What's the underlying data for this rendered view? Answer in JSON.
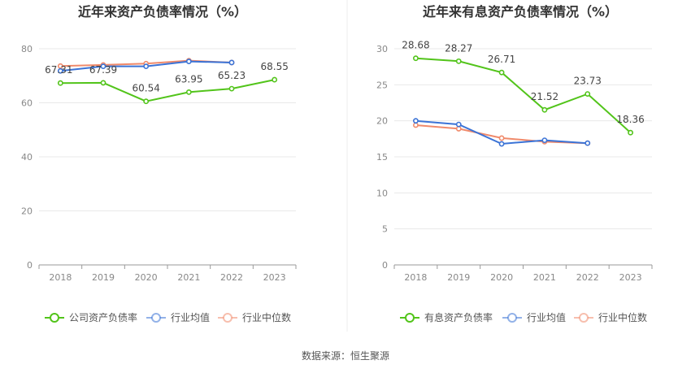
{
  "source": "数据来源：恒生聚源",
  "chart_data": [
    {
      "type": "line",
      "title": "近年来资产负债率情况（%）",
      "categories": [
        "2018",
        "2019",
        "2020",
        "2021",
        "2022",
        "2023"
      ],
      "ylim": [
        0,
        80
      ],
      "yticks": [
        0,
        20,
        40,
        60,
        80
      ],
      "grid": true,
      "legend_position": "bottom",
      "series": [
        {
          "name": "公司资产负债率",
          "color": "#52c41a",
          "values": [
            67.31,
            67.39,
            60.54,
            63.95,
            65.23,
            68.55
          ],
          "labels": [
            "67.31",
            "67.39",
            "60.54",
            "63.95",
            "65.23",
            "68.55"
          ]
        },
        {
          "name": "行业均值",
          "color": "#3b73d6",
          "values": [
            71.8,
            73.5,
            73.5,
            75.3,
            74.9,
            null
          ]
        },
        {
          "name": "行业中位数",
          "color": "#f08a6b",
          "values": [
            73.6,
            74.0,
            74.5,
            75.6,
            74.9,
            null
          ]
        }
      ]
    },
    {
      "type": "line",
      "title": "近年来有息资产负债率情况（%）",
      "categories": [
        "2018",
        "2019",
        "2020",
        "2021",
        "2022",
        "2023"
      ],
      "ylim": [
        0,
        30
      ],
      "yticks": [
        0,
        5,
        10,
        15,
        20,
        25,
        30
      ],
      "grid": true,
      "legend_position": "bottom",
      "series": [
        {
          "name": "有息资产负债率",
          "color": "#52c41a",
          "values": [
            28.68,
            28.27,
            26.71,
            21.52,
            23.73,
            18.36
          ],
          "labels": [
            "28.68",
            "28.27",
            "26.71",
            "21.52",
            "23.73",
            "18.36"
          ]
        },
        {
          "name": "行业均值",
          "color": "#3b73d6",
          "values": [
            20.0,
            19.5,
            16.8,
            17.3,
            16.9,
            null
          ]
        },
        {
          "name": "行业中位数",
          "color": "#f08a6b",
          "values": [
            19.4,
            18.9,
            17.6,
            17.1,
            16.9,
            null
          ]
        }
      ]
    }
  ]
}
